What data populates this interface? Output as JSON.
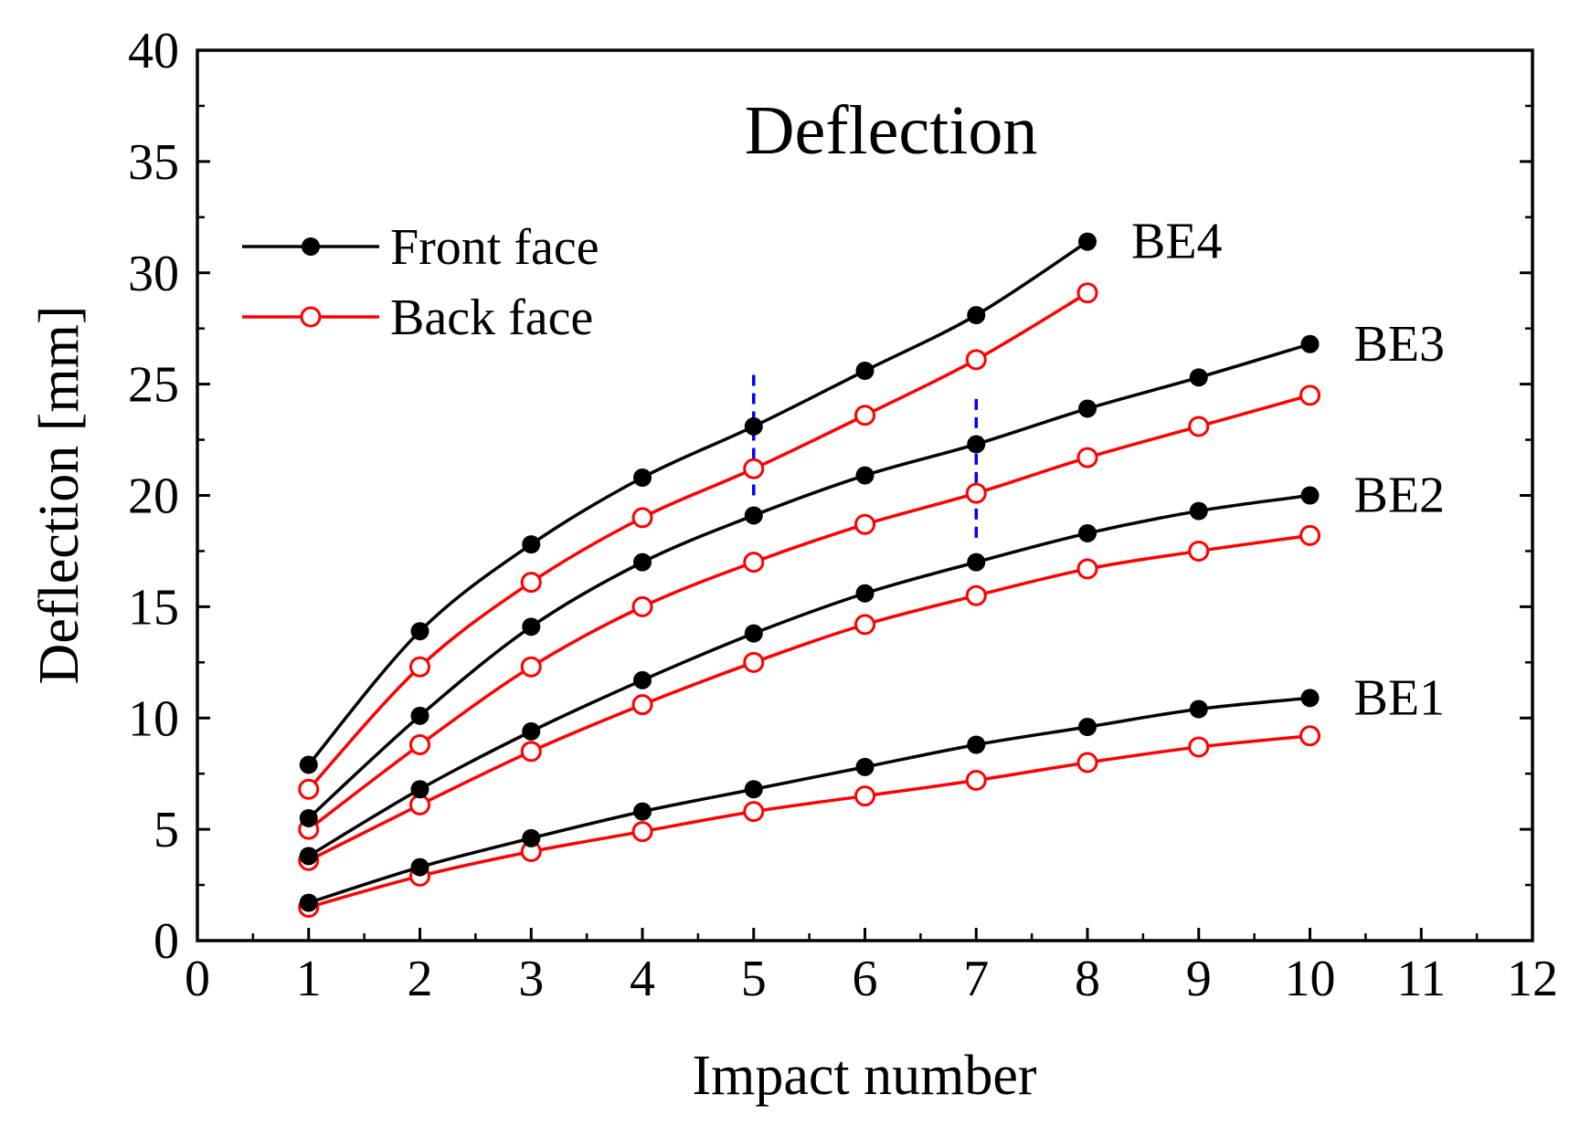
{
  "chart_data": {
    "type": "line",
    "title": "Deflection",
    "xlabel": "Impact number",
    "ylabel": "Deflection [mm]",
    "xlim": [
      0,
      12
    ],
    "ylim": [
      0,
      40
    ],
    "xticks": [
      "0",
      "1",
      "2",
      "3",
      "4",
      "5",
      "6",
      "7",
      "8",
      "9",
      "10",
      "11",
      "12"
    ],
    "yticks": [
      "0",
      "5",
      "10",
      "15",
      "20",
      "25",
      "30",
      "35",
      "40"
    ],
    "grid": false,
    "legend": {
      "position": "top-left",
      "entries": [
        {
          "name": "Front face",
          "color": "#000000",
          "marker": "filled-circle"
        },
        {
          "name": "Back face",
          "color": "#ff0000",
          "marker": "open-circle"
        }
      ]
    },
    "groups": [
      {
        "label": "BE1",
        "front": {
          "x": [
            1,
            2,
            3,
            4,
            5,
            6,
            7,
            8,
            9,
            10
          ],
          "y": [
            1.7,
            3.3,
            4.6,
            5.8,
            6.8,
            7.8,
            8.8,
            9.6,
            10.4,
            10.9
          ]
        },
        "back": {
          "x": [
            1,
            2,
            3,
            4,
            5,
            6,
            7,
            8,
            9,
            10
          ],
          "y": [
            1.5,
            2.9,
            4.0,
            4.9,
            5.8,
            6.5,
            7.2,
            8.0,
            8.7,
            9.2
          ]
        }
      },
      {
        "label": "BE2",
        "front": {
          "x": [
            1,
            2,
            3,
            4,
            5,
            6,
            7,
            8,
            9,
            10
          ],
          "y": [
            3.8,
            6.8,
            9.4,
            11.7,
            13.8,
            15.6,
            17.0,
            18.3,
            19.3,
            20.0
          ]
        },
        "back": {
          "x": [
            1,
            2,
            3,
            4,
            5,
            6,
            7,
            8,
            9,
            10
          ],
          "y": [
            3.6,
            6.1,
            8.5,
            10.6,
            12.5,
            14.2,
            15.5,
            16.7,
            17.5,
            18.2
          ]
        }
      },
      {
        "label": "BE3",
        "front": {
          "x": [
            1,
            2,
            3,
            4,
            5,
            6,
            7,
            8,
            9,
            10
          ],
          "y": [
            5.5,
            10.1,
            14.1,
            17.0,
            19.1,
            20.9,
            22.3,
            23.9,
            25.3,
            26.8
          ]
        },
        "back": {
          "x": [
            1,
            2,
            3,
            4,
            5,
            6,
            7,
            8,
            9,
            10
          ],
          "y": [
            5.0,
            8.8,
            12.3,
            15.0,
            17.0,
            18.7,
            20.1,
            21.7,
            23.1,
            24.5
          ]
        }
      },
      {
        "label": "BE4",
        "front": {
          "x": [
            1,
            2,
            3,
            4,
            5,
            6,
            7,
            8
          ],
          "y": [
            7.9,
            13.9,
            17.8,
            20.8,
            23.1,
            25.6,
            28.1,
            31.4
          ]
        },
        "back": {
          "x": [
            1,
            2,
            3,
            4,
            5,
            6,
            7,
            8
          ],
          "y": [
            6.8,
            12.3,
            16.1,
            19.0,
            21.2,
            23.6,
            26.1,
            29.1
          ]
        }
      }
    ],
    "annotations": [
      {
        "type": "dashed-vertical",
        "color": "#0000ff",
        "x": 5,
        "y_range": [
          20.0,
          25.7
        ]
      },
      {
        "type": "dashed-vertical",
        "color": "#0000ff",
        "x": 7,
        "y_range": [
          18.1,
          24.6
        ]
      }
    ]
  }
}
